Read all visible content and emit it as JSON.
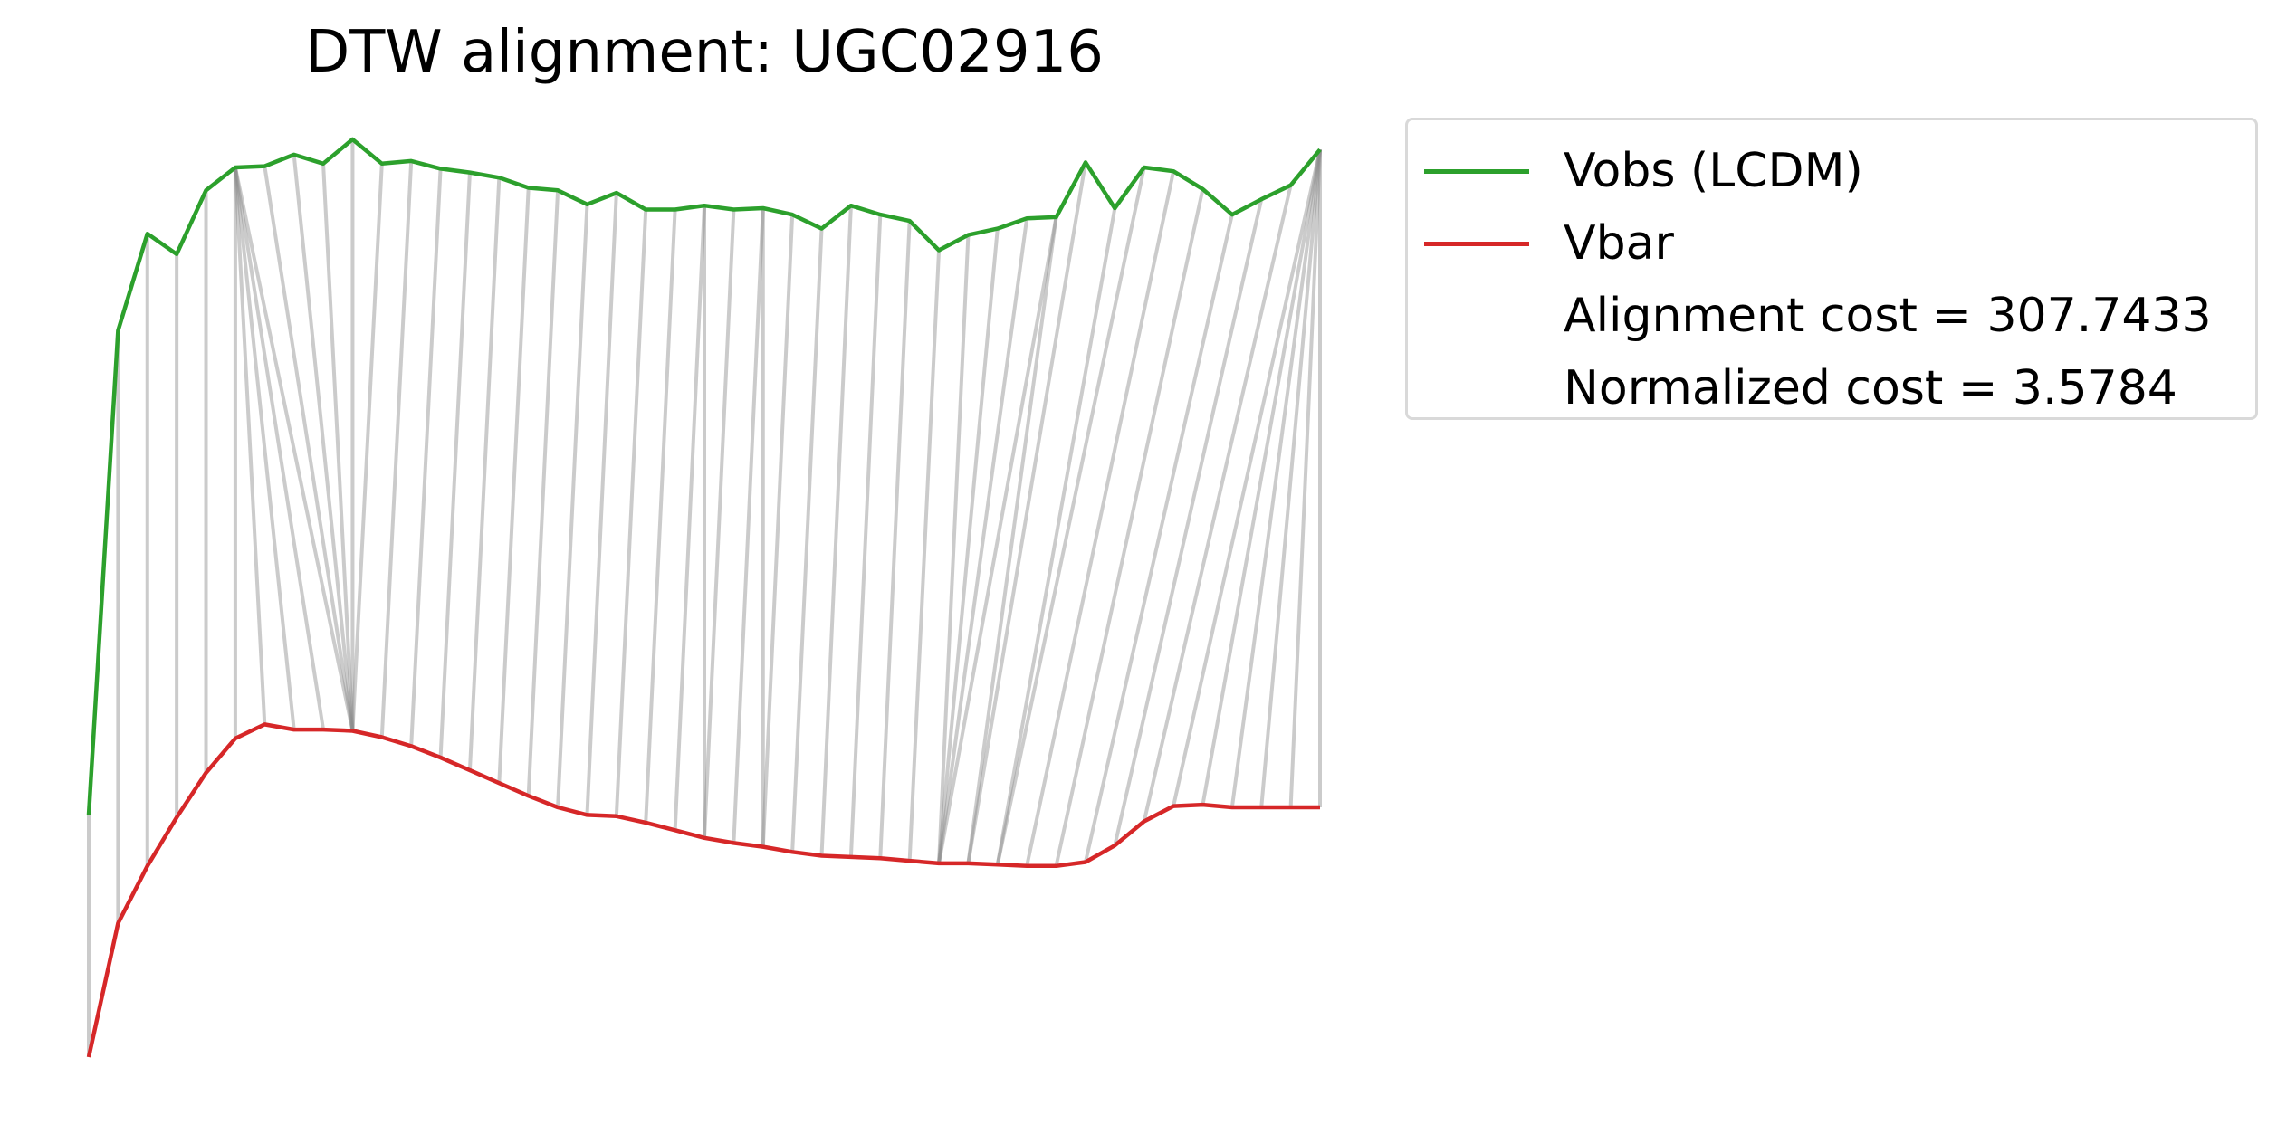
{
  "chart_data": {
    "type": "line",
    "title": "DTW alignment: UGC02916",
    "xlabel": "",
    "ylabel": "",
    "axes_visible": false,
    "grid": false,
    "legend_placement": "outside right, top",
    "legend_entries": [
      "Vobs (LCDM)",
      "Vbar",
      "Alignment cost = 307.7433",
      "Normalized cost = 3.5784"
    ],
    "annotations": [
      "Alignment cost = 307.7433",
      "Normalized cost = 3.5784"
    ],
    "y_units": "pixel_proxy",
    "x": [
      0,
      1,
      2,
      3,
      4,
      5,
      6,
      7,
      8,
      9,
      10,
      11,
      12,
      13,
      14,
      15,
      16,
      17,
      18,
      19,
      20,
      21,
      22,
      23,
      24,
      25,
      26,
      27,
      28,
      29,
      30,
      31,
      32,
      33,
      34,
      35,
      36,
      37,
      38,
      39,
      40,
      41,
      42
    ],
    "series": [
      {
        "name": "Vobs (LCDM)",
        "color": "#2ca02c",
        "values": [
          190,
          570,
          646,
          630,
          680,
          698,
          699,
          708,
          701,
          720,
          701,
          703,
          697,
          694,
          690,
          682,
          680,
          669,
          678,
          665,
          665,
          668,
          665,
          666,
          661,
          650,
          668,
          661,
          656,
          633,
          645,
          650,
          658,
          659,
          702,
          666,
          698,
          695,
          681,
          661,
          673,
          684,
          712
        ]
      },
      {
        "name": "Vbar",
        "color": "#d62728",
        "values": [
          0,
          105,
          150,
          188,
          223,
          250,
          261,
          257,
          257,
          256,
          251,
          244,
          235,
          225,
          215,
          205,
          196,
          190,
          189,
          184,
          178,
          172,
          168,
          165,
          161,
          158,
          157,
          156,
          154,
          152,
          152,
          151,
          150,
          150,
          153,
          166,
          185,
          197,
          198,
          196,
          196,
          196,
          196
        ]
      }
    ],
    "alignment": {
      "color": "#c8c8c8",
      "pairs": [
        [
          0,
          0
        ],
        [
          1,
          1
        ],
        [
          2,
          2
        ],
        [
          3,
          3
        ],
        [
          4,
          4
        ],
        [
          5,
          5
        ],
        [
          5,
          6
        ],
        [
          5,
          7
        ],
        [
          5,
          8
        ],
        [
          5,
          9
        ],
        [
          6,
          9
        ],
        [
          7,
          9
        ],
        [
          8,
          9
        ],
        [
          9,
          9
        ],
        [
          10,
          9
        ],
        [
          11,
          10
        ],
        [
          12,
          11
        ],
        [
          13,
          12
        ],
        [
          14,
          13
        ],
        [
          15,
          14
        ],
        [
          16,
          15
        ],
        [
          17,
          16
        ],
        [
          18,
          17
        ],
        [
          19,
          18
        ],
        [
          20,
          19
        ],
        [
          21,
          20
        ],
        [
          21,
          21
        ],
        [
          22,
          21
        ],
        [
          23,
          22
        ],
        [
          23,
          23
        ],
        [
          24,
          23
        ],
        [
          25,
          24
        ],
        [
          26,
          25
        ],
        [
          27,
          26
        ],
        [
          28,
          27
        ],
        [
          29,
          28
        ],
        [
          30,
          29
        ],
        [
          31,
          29
        ],
        [
          32,
          29
        ],
        [
          33,
          29
        ],
        [
          33,
          30
        ],
        [
          34,
          30
        ],
        [
          35,
          31
        ],
        [
          36,
          31
        ],
        [
          37,
          32
        ],
        [
          38,
          33
        ],
        [
          39,
          34
        ],
        [
          40,
          35
        ],
        [
          41,
          36
        ],
        [
          42,
          37
        ],
        [
          42,
          38
        ],
        [
          42,
          39
        ],
        [
          42,
          40
        ],
        [
          42,
          41
        ],
        [
          42,
          42
        ]
      ]
    }
  },
  "legend": {
    "items": [
      {
        "label": "Vobs (LCDM)",
        "color": "#2ca02c"
      },
      {
        "label": "Vbar",
        "color": "#d62728"
      },
      {
        "label": "Alignment cost = 307.7433",
        "color": ""
      },
      {
        "label": "Normalized cost = 3.5784",
        "color": ""
      }
    ]
  }
}
